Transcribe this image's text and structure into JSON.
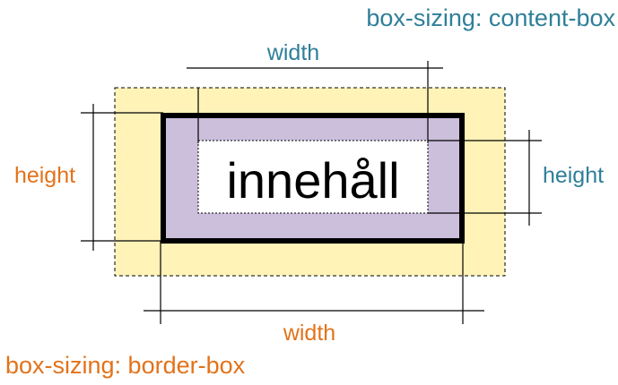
{
  "content_box": {
    "title": "box-sizing: content-box",
    "width_label": "width",
    "height_label": "height"
  },
  "border_box": {
    "title": "box-sizing: border-box",
    "width_label": "width",
    "height_label": "height"
  },
  "content_text": "innehåll",
  "colors": {
    "teal": "#2f7f99",
    "orange": "#e2731b",
    "margin_fill": "#fff3b8",
    "padding_fill": "#cbbfdc",
    "border": "#000000"
  }
}
